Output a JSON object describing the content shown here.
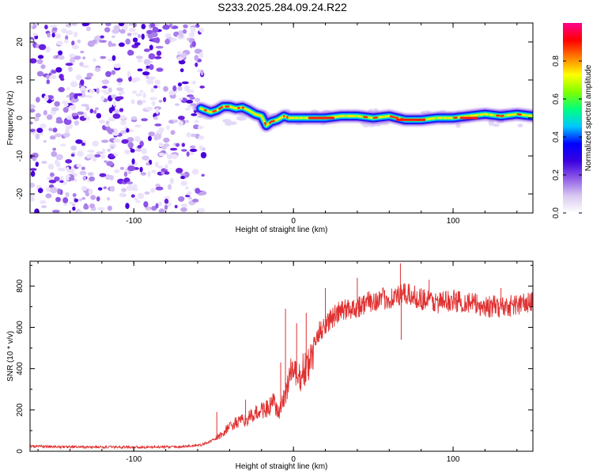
{
  "title": "S233.2025.284.09.24.R22",
  "chart_data": [
    {
      "type": "heatmap",
      "name": "spectrogram",
      "xlabel": "Height of straight line (km)",
      "ylabel": "Frequency (Hz)",
      "xlim": [
        -165,
        150
      ],
      "ylim": [
        -25,
        25
      ],
      "xticks": [
        -100,
        0,
        100
      ],
      "yticks": [
        -20,
        -10,
        0,
        10,
        20
      ],
      "colorbar": {
        "label": "Normalized spectral amplitude",
        "range": [
          0,
          1
        ],
        "ticks": [
          0.0,
          0.2,
          0.4,
          0.6,
          0.8
        ],
        "colors": [
          "#ffffff",
          "#d8c8f0",
          "#8f5be8",
          "#3a00e0",
          "#0000ff",
          "#00c8ff",
          "#00ff80",
          "#80ff00",
          "#ffff00",
          "#ff8000",
          "#ff0000",
          "#ff0090"
        ]
      },
      "noise_region_x": [
        -165,
        -58
      ],
      "signal_track": {
        "x": [
          -58,
          -52,
          -48,
          -44,
          -40,
          -36,
          -32,
          -28,
          -24,
          -20,
          -17,
          -14,
          -10,
          -6,
          -3,
          0,
          10,
          20,
          30,
          40,
          50,
          60,
          70,
          80,
          90,
          100,
          110,
          120,
          130,
          140,
          150
        ],
        "freq": [
          2.5,
          1.5,
          2.0,
          3.0,
          3.0,
          2.5,
          2.8,
          2.0,
          1.0,
          0.5,
          -2.0,
          -1.0,
          -0.5,
          0.5,
          0.0,
          0.0,
          0.0,
          0.0,
          0.5,
          0.5,
          0.0,
          0.5,
          -0.5,
          -0.5,
          0.0,
          0.0,
          0.5,
          1.0,
          0.5,
          1.0,
          0.5
        ]
      }
    },
    {
      "type": "line",
      "name": "snr",
      "xlabel": "Height of straight line (km)",
      "ylabel": "SNR (10 * v/v)",
      "xlim": [
        -165,
        150
      ],
      "ylim": [
        0,
        920
      ],
      "xticks": [
        -100,
        0,
        100
      ],
      "yticks": [
        0,
        200,
        400,
        600,
        800
      ],
      "color": "#e03030",
      "series": [
        {
          "name": "SNR",
          "x": [
            -165,
            -150,
            -130,
            -110,
            -90,
            -70,
            -58,
            -50,
            -45,
            -40,
            -35,
            -30,
            -25,
            -20,
            -15,
            -12,
            -10,
            -8,
            -5,
            -2,
            0,
            3,
            5,
            8,
            10,
            12,
            15,
            20,
            25,
            30,
            40,
            50,
            60,
            70,
            80,
            90,
            100,
            110,
            120,
            130,
            140,
            150
          ],
          "values": [
            25,
            22,
            20,
            20,
            20,
            22,
            30,
            55,
            80,
            120,
            140,
            150,
            175,
            200,
            210,
            240,
            180,
            200,
            280,
            380,
            400,
            330,
            380,
            400,
            420,
            480,
            560,
            620,
            650,
            680,
            700,
            730,
            740,
            760,
            740,
            720,
            730,
            720,
            700,
            700,
            710,
            720
          ]
        }
      ],
      "spikes": [
        {
          "x": -48,
          "value": 190
        },
        {
          "x": -30,
          "value": 250
        },
        {
          "x": -8,
          "value": 430
        },
        {
          "x": -5,
          "value": 690
        },
        {
          "x": 2,
          "value": 620
        },
        {
          "x": 8,
          "value": 670
        },
        {
          "x": 20,
          "value": 790
        },
        {
          "x": 40,
          "value": 840
        },
        {
          "x": 67,
          "value": 910
        },
        {
          "x": 67.5,
          "value": 540
        },
        {
          "x": 85,
          "value": 830
        },
        {
          "x": 130,
          "value": 790
        }
      ]
    }
  ]
}
